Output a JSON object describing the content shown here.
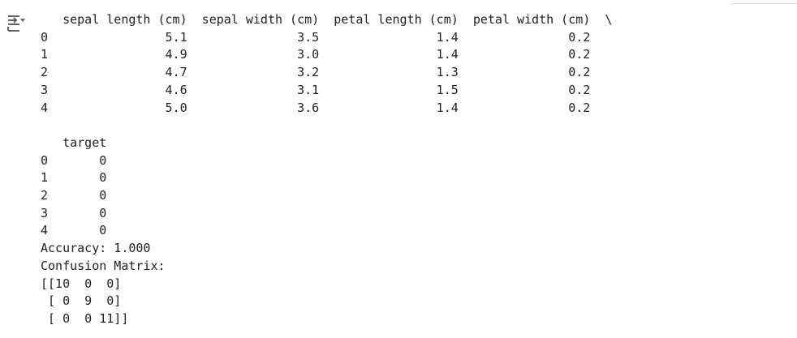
{
  "cell": {
    "output_toggle_icon": "output-menu-icon",
    "lines": [
      "   sepal length (cm)  sepal width (cm)  petal length (cm)  petal width (cm)  \\",
      "0                5.1               3.5                1.4               0.2",
      "1                4.9               3.0                1.4               0.2",
      "2                4.7               3.2                1.3               0.2",
      "3                4.6               3.1                1.5               0.2",
      "4                5.0               3.6                1.4               0.2",
      "",
      "   target",
      "0       0",
      "1       0",
      "2       0",
      "3       0",
      "4       0",
      "Accuracy: 1.000",
      "Confusion Matrix:",
      "[[10  0  0]",
      " [ 0  9  0]",
      " [ 0  0 11]]"
    ]
  }
}
